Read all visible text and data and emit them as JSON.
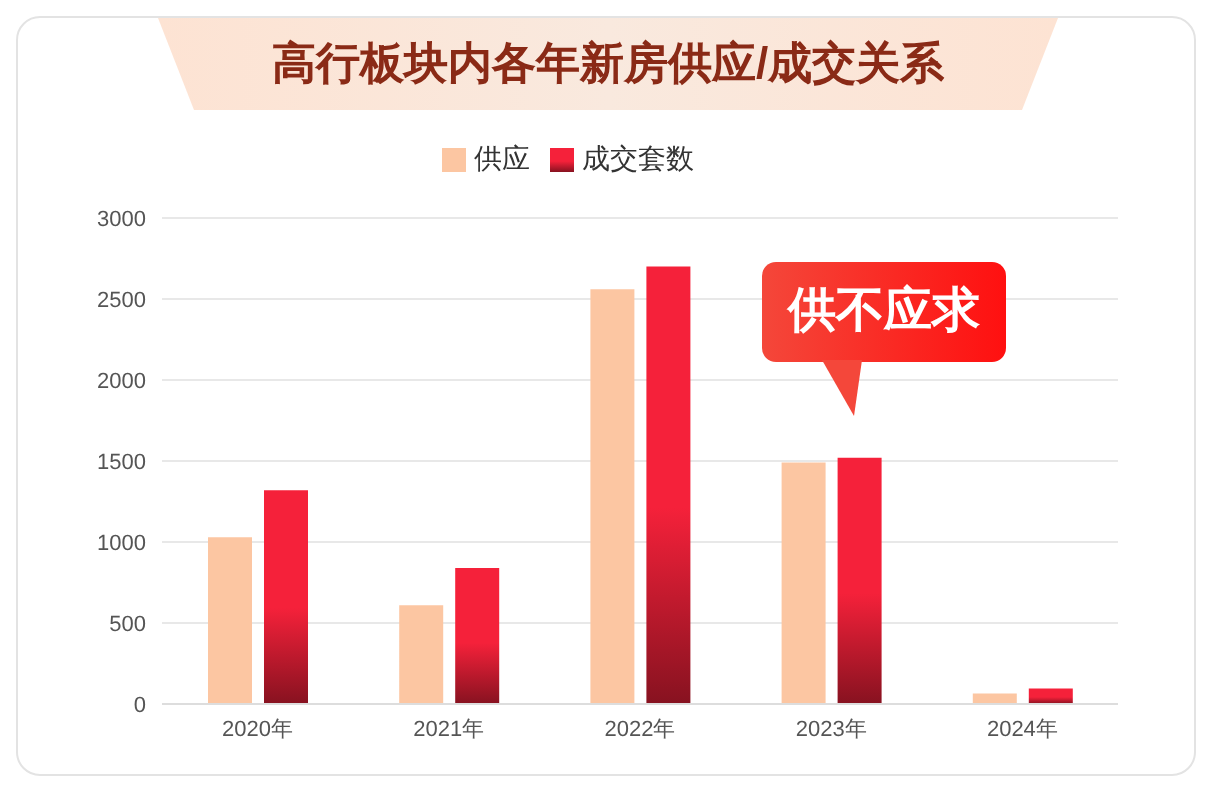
{
  "chart_data": {
    "type": "bar",
    "title": "高行板块内各年新房供应/成交关系",
    "categories": [
      "2020年",
      "2021年",
      "2022年",
      "2023年",
      "2024年"
    ],
    "series": [
      {
        "name": "供应",
        "color": "#fcc6a2",
        "values": [
          1030,
          610,
          2560,
          1490,
          65
        ]
      },
      {
        "name": "成交套数",
        "color": "#f5213a",
        "values": [
          1320,
          840,
          2700,
          1520,
          95
        ]
      }
    ],
    "ylim": [
      0,
      3000
    ],
    "yticks": [
      0,
      500,
      1000,
      1500,
      2000,
      2500,
      3000
    ],
    "grid": "y",
    "legend": "top",
    "annotations": [
      "供不应求"
    ]
  }
}
